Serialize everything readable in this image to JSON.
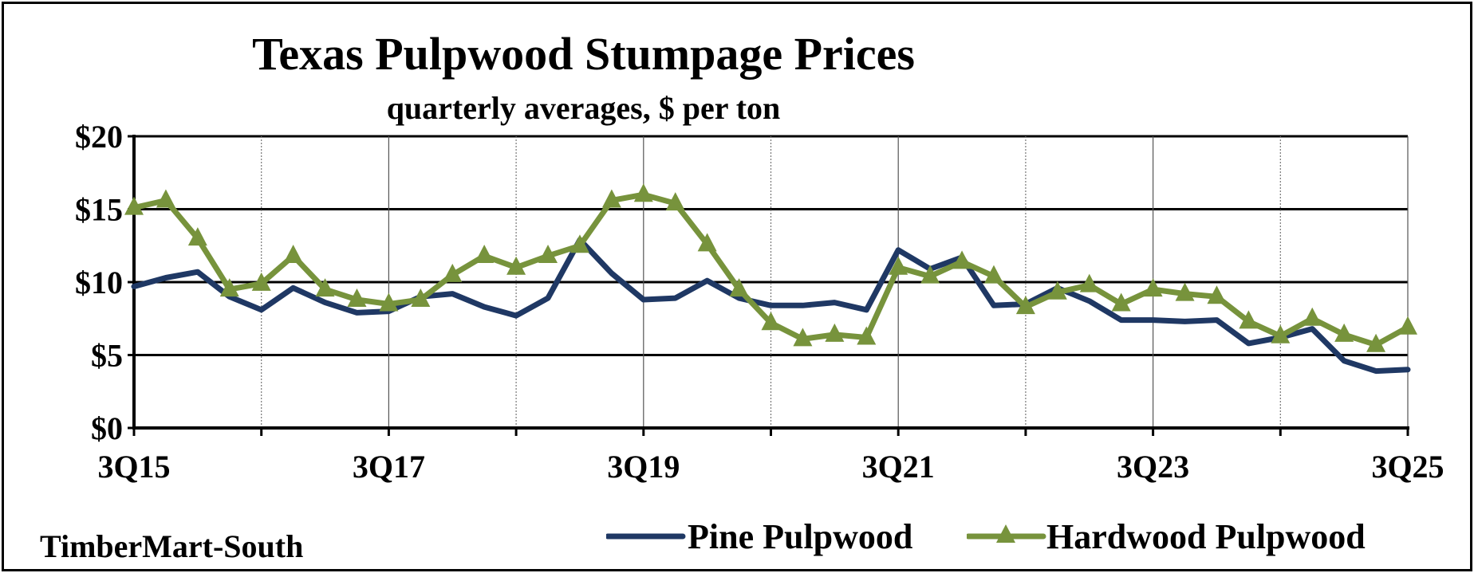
{
  "chart_data": {
    "type": "line",
    "title": "Texas Pulpwood Stumpage Prices",
    "subtitle": "quarterly averages, $ per ton",
    "source": "TimberMart-South",
    "y_ticks": [
      "$0",
      "$5",
      "$10",
      "$15",
      "$20"
    ],
    "ylim": [
      0,
      20
    ],
    "x_ticks": [
      "3Q15",
      "3Q17",
      "3Q19",
      "3Q21",
      "3Q23",
      "3Q25"
    ],
    "x_tick_indices": [
      0,
      8,
      16,
      24,
      32,
      40
    ],
    "grid": true,
    "legend_position": "bottom-right",
    "categories": [
      "3Q15",
      "4Q15",
      "1Q16",
      "2Q16",
      "3Q16",
      "4Q16",
      "1Q17",
      "2Q17",
      "3Q17",
      "4Q17",
      "1Q18",
      "2Q18",
      "3Q18",
      "4Q18",
      "1Q19",
      "2Q19",
      "3Q19",
      "4Q19",
      "1Q20",
      "2Q20",
      "3Q20",
      "4Q20",
      "1Q21",
      "2Q21",
      "3Q21",
      "4Q21",
      "1Q22",
      "2Q22",
      "3Q22",
      "4Q22",
      "1Q23",
      "2Q23",
      "3Q23",
      "4Q23",
      "1Q24",
      "2Q24",
      "3Q24",
      "4Q24",
      "1Q25",
      "2Q25",
      "3Q25"
    ],
    "series": [
      {
        "name": "Pine Pulpwood",
        "color": "#1f3864",
        "marker": "none",
        "values": [
          9.7,
          10.3,
          10.7,
          9.0,
          8.1,
          9.6,
          8.6,
          7.9,
          8.0,
          9.0,
          9.2,
          8.3,
          7.7,
          8.9,
          12.9,
          10.6,
          8.8,
          8.9,
          10.1,
          8.9,
          8.4,
          8.4,
          8.6,
          8.1,
          12.2,
          10.9,
          11.7,
          8.4,
          8.5,
          9.6,
          8.7,
          7.4,
          7.4,
          7.3,
          7.4,
          5.8,
          6.2,
          6.8,
          4.6,
          3.9,
          4.0
        ]
      },
      {
        "name": "Hardwood Pulpwood",
        "color": "#77933c",
        "marker": "triangle",
        "values": [
          15.1,
          15.6,
          13.0,
          9.5,
          9.9,
          11.8,
          9.5,
          8.8,
          8.5,
          8.8,
          10.5,
          11.8,
          11.0,
          11.8,
          12.5,
          15.6,
          16.0,
          15.4,
          12.6,
          9.5,
          7.2,
          6.1,
          6.4,
          6.2,
          11.0,
          10.4,
          11.4,
          10.4,
          8.3,
          9.3,
          9.8,
          8.5,
          9.5,
          9.2,
          9.0,
          7.3,
          6.3,
          7.5,
          6.4,
          5.7,
          6.9
        ]
      }
    ]
  }
}
